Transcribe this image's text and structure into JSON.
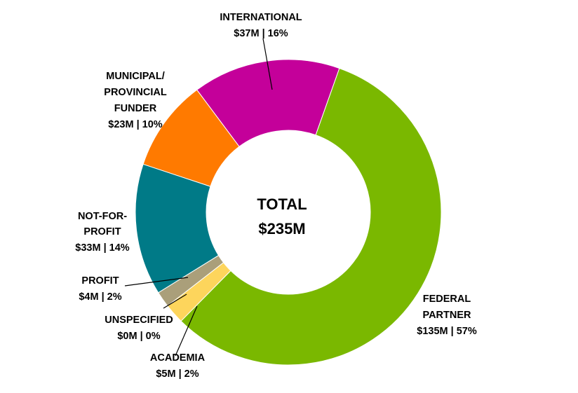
{
  "chart_data": {
    "type": "pie",
    "donut": true,
    "title": "",
    "center_label": {
      "line1": "TOTAL",
      "line2": "$235M"
    },
    "total": 235,
    "unit": "$M",
    "slices": [
      {
        "label": [
          "FEDERAL",
          "PARTNER"
        ],
        "value": 135,
        "percent": 57,
        "value_text": "$135M | 57%",
        "color": "#7ab800"
      },
      {
        "label": [
          "UNSPECIFIED"
        ],
        "value": 0,
        "percent": 0,
        "value_text": "$0M | 0%",
        "color": "#7ab800"
      },
      {
        "label": [
          "ACADEMIA"
        ],
        "value": 5,
        "percent": 2,
        "value_text": "$5M | 2%",
        "color": "#fdd55c"
      },
      {
        "label": [
          "PROFIT"
        ],
        "value": 4,
        "percent": 2,
        "value_text": "$4M | 2%",
        "color": "#aa9f7a"
      },
      {
        "label": [
          "NOT-FOR-",
          "PROFIT"
        ],
        "value": 33,
        "percent": 14,
        "value_text": "$33M | 14%",
        "color": "#007a87"
      },
      {
        "label": [
          "MUNICIPAL/",
          "PROVINCIAL",
          "FUNDER"
        ],
        "value": 23,
        "percent": 10,
        "value_text": "$23M | 10%",
        "color": "#ff7a00"
      },
      {
        "label": [
          "INTERNATIONAL"
        ],
        "value": 37,
        "percent": 16,
        "value_text": "$37M | 16%",
        "color": "#c4009a"
      }
    ]
  }
}
